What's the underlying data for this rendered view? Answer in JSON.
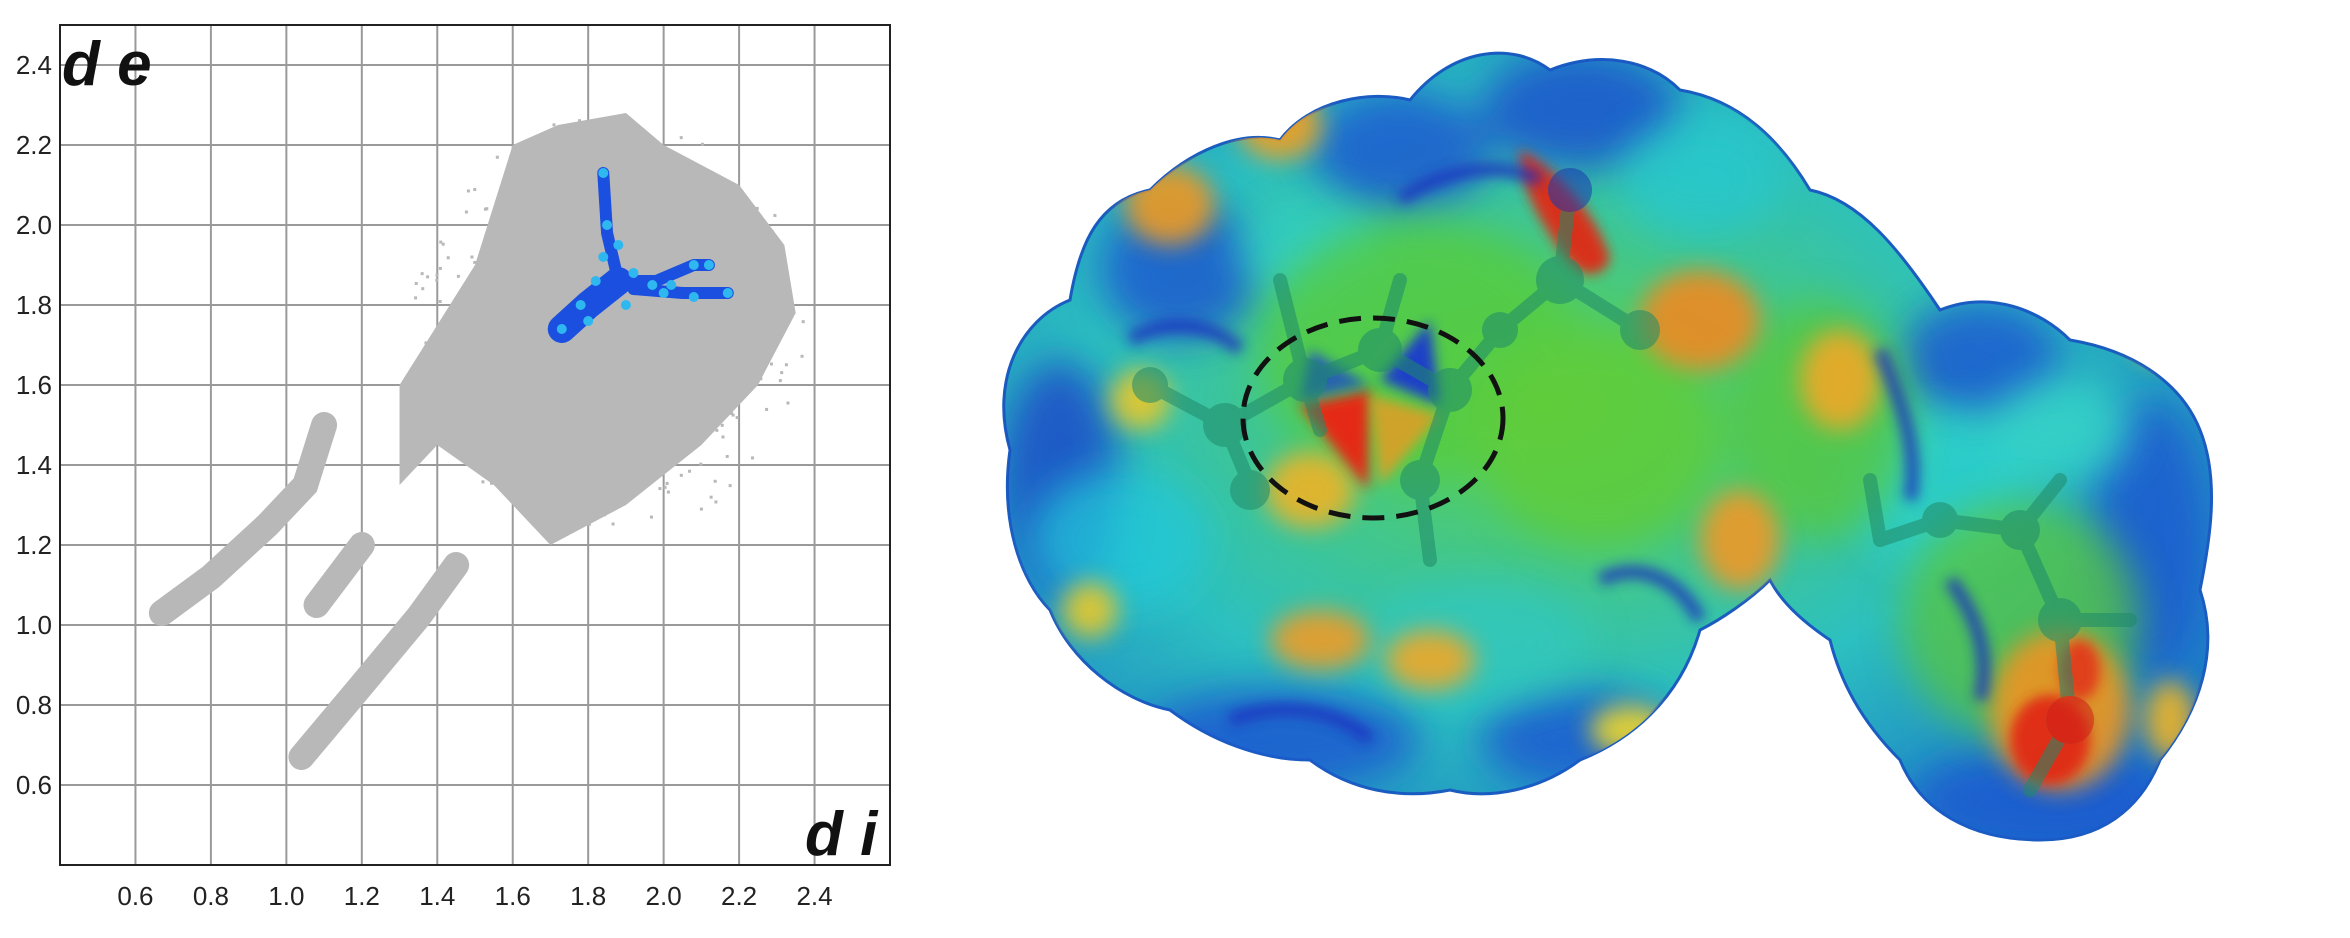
{
  "chart_data": {
    "type": "scatter",
    "title": "",
    "xlabel": "d i",
    "ylabel": "d e",
    "xlim": [
      0.4,
      2.6
    ],
    "ylim": [
      0.4,
      2.5
    ],
    "xticks": [
      "0.6",
      "0.8",
      "1.0",
      "1.2",
      "1.4",
      "1.6",
      "1.8",
      "2.0",
      "2.2",
      "2.4"
    ],
    "yticks": [
      "0.6",
      "0.8",
      "1.0",
      "1.2",
      "1.4",
      "1.6",
      "1.8",
      "2.0",
      "2.2",
      "2.4"
    ],
    "grid": true,
    "colors": {
      "full_plot": "#b8b8b8",
      "highlight": "#1a4fe0",
      "highlight_light": "#2fb8f0",
      "grid": "#9a9a9a"
    },
    "series": [
      {
        "role": "full-fingerprint",
        "color": "#b8b8b8",
        "points": [
          [
            0.67,
            1.03
          ],
          [
            0.8,
            1.12
          ],
          [
            0.95,
            1.25
          ],
          [
            1.05,
            1.35
          ],
          [
            1.1,
            1.5
          ],
          [
            1.04,
            0.67
          ],
          [
            1.2,
            0.85
          ],
          [
            1.35,
            1.02
          ],
          [
            1.45,
            1.15
          ],
          [
            1.08,
            1.05
          ],
          [
            1.2,
            1.2
          ],
          [
            1.3,
            1.35
          ],
          [
            1.3,
            1.6
          ],
          [
            1.5,
            1.9
          ],
          [
            1.6,
            2.2
          ],
          [
            1.72,
            2.25
          ],
          [
            1.9,
            2.28
          ],
          [
            2.0,
            2.2
          ],
          [
            2.2,
            2.1
          ],
          [
            2.32,
            1.95
          ],
          [
            2.35,
            1.78
          ],
          [
            2.25,
            1.6
          ],
          [
            2.1,
            1.45
          ],
          [
            1.9,
            1.3
          ],
          [
            1.7,
            1.2
          ],
          [
            1.55,
            1.35
          ],
          [
            1.4,
            1.45
          ]
        ]
      },
      {
        "role": "selected-contact",
        "color": "#1a4fe0",
        "points": [
          [
            1.73,
            1.74
          ],
          [
            1.78,
            1.8
          ],
          [
            1.82,
            1.86
          ],
          [
            1.84,
            1.92
          ],
          [
            1.85,
            2.0
          ],
          [
            1.84,
            2.13
          ],
          [
            1.88,
            1.95
          ],
          [
            1.92,
            1.88
          ],
          [
            1.97,
            1.85
          ],
          [
            2.02,
            1.85
          ],
          [
            2.08,
            1.9
          ],
          [
            2.12,
            1.9
          ],
          [
            2.0,
            1.83
          ],
          [
            2.08,
            1.82
          ],
          [
            2.17,
            1.83
          ],
          [
            1.9,
            1.8
          ],
          [
            1.8,
            1.76
          ]
        ]
      }
    ]
  },
  "surface_image": {
    "type": "hirshfeld-surface",
    "colors": {
      "blue": "#1e44c8",
      "cyan": "#25c8e0",
      "green": "#4cc83a",
      "yellow": "#e8d82a",
      "orange": "#ee8a20",
      "red": "#e02a18"
    },
    "annotation": "dashed-circle"
  }
}
